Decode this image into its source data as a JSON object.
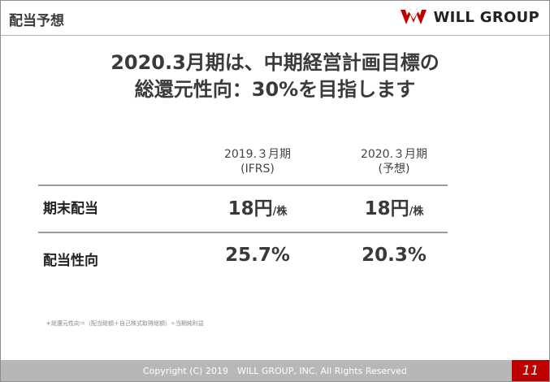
{
  "header": {
    "title": "配当予想",
    "logo_text": "WILL GROUP"
  },
  "headline": {
    "line1": "2020.3月期は、中期経営計画目標の",
    "line2": "総還元性向：30%を目指します"
  },
  "table": {
    "columns": [
      {
        "line1": "2019.３月期",
        "line2": "(IFRS)"
      },
      {
        "line1": "2020.３月期",
        "line2": "(予想)"
      }
    ],
    "rows": [
      {
        "label": "期末配当",
        "values": [
          "18円",
          "18円"
        ],
        "unit": "/株"
      },
      {
        "label": "配当性向",
        "values": [
          "25.7%",
          "20.3%"
        ]
      }
    ]
  },
  "footnote": "＊総還元性向＝（配当総額＋自己株式取得総額）÷当期純利益",
  "footer": {
    "copyright": "Copyright (C) 2019　WILL GROUP, INC.  All Rights Reserved",
    "page_number": "11"
  },
  "colors": {
    "accent": "#c00000",
    "footer_bar": "#b7b7b7"
  }
}
